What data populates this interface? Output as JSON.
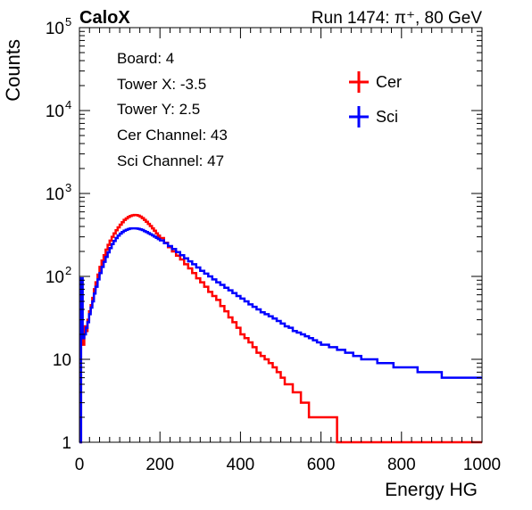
{
  "header": {
    "experiment": "CaloX",
    "run": "Run 1474:   π⁺, 80 GeV"
  },
  "info_box": {
    "lines": [
      "Board: 4",
      "Tower X: -3.5",
      "Tower Y: 2.5",
      "Cer Channel: 43",
      "Sci Channel: 47"
    ]
  },
  "colors": {
    "cer": "#ff0000",
    "sci": "#0000ff"
  },
  "chart_data": {
    "type": "line",
    "xlabel": "Energy HG",
    "ylabel": "Counts",
    "xlim": [
      0,
      1000
    ],
    "ylim": [
      1,
      100000
    ],
    "yscale": "log",
    "x_ticks": [
      0,
      200,
      400,
      600,
      800,
      1000
    ],
    "y_ticks": [
      {
        "value": 1,
        "label": "1"
      },
      {
        "value": 10,
        "label": "10"
      },
      {
        "value": 100,
        "label": "10",
        "exp": "2"
      },
      {
        "value": 1000,
        "label": "10",
        "exp": "3"
      },
      {
        "value": 10000,
        "label": "10",
        "exp": "4"
      },
      {
        "value": 100000,
        "label": "10",
        "exp": "5"
      }
    ],
    "legend_position": "top-right",
    "series": [
      {
        "name": "Cer",
        "color": "#ff0000",
        "points": [
          [
            0,
            1
          ],
          [
            4,
            20
          ],
          [
            8,
            15
          ],
          [
            12,
            25
          ],
          [
            16,
            22
          ],
          [
            20,
            30
          ],
          [
            24,
            38
          ],
          [
            28,
            45
          ],
          [
            32,
            55
          ],
          [
            36,
            70
          ],
          [
            40,
            85
          ],
          [
            45,
            105
          ],
          [
            50,
            130
          ],
          [
            55,
            155
          ],
          [
            60,
            180
          ],
          [
            65,
            210
          ],
          [
            70,
            240
          ],
          [
            75,
            270
          ],
          [
            80,
            300
          ],
          [
            85,
            330
          ],
          [
            90,
            360
          ],
          [
            95,
            390
          ],
          [
            100,
            420
          ],
          [
            105,
            450
          ],
          [
            110,
            480
          ],
          [
            115,
            500
          ],
          [
            120,
            520
          ],
          [
            125,
            535
          ],
          [
            130,
            545
          ],
          [
            135,
            550
          ],
          [
            140,
            548
          ],
          [
            145,
            540
          ],
          [
            150,
            525
          ],
          [
            155,
            505
          ],
          [
            160,
            480
          ],
          [
            165,
            455
          ],
          [
            170,
            430
          ],
          [
            175,
            405
          ],
          [
            180,
            380
          ],
          [
            185,
            355
          ],
          [
            190,
            330
          ],
          [
            195,
            310
          ],
          [
            200,
            290
          ],
          [
            210,
            255
          ],
          [
            220,
            225
          ],
          [
            230,
            200
          ],
          [
            240,
            178
          ],
          [
            250,
            160
          ],
          [
            260,
            140
          ],
          [
            270,
            125
          ],
          [
            280,
            110
          ],
          [
            290,
            95
          ],
          [
            300,
            85
          ],
          [
            310,
            75
          ],
          [
            320,
            65
          ],
          [
            330,
            58
          ],
          [
            340,
            52
          ],
          [
            350,
            44
          ],
          [
            360,
            38
          ],
          [
            370,
            32
          ],
          [
            380,
            28
          ],
          [
            390,
            24
          ],
          [
            400,
            20
          ],
          [
            410,
            18
          ],
          [
            420,
            16
          ],
          [
            430,
            14
          ],
          [
            440,
            12
          ],
          [
            450,
            11
          ],
          [
            460,
            10
          ],
          [
            470,
            9
          ],
          [
            480,
            8
          ],
          [
            490,
            7
          ],
          [
            500,
            6
          ],
          [
            510,
            5
          ],
          [
            520,
            5
          ],
          [
            530,
            4
          ],
          [
            540,
            4
          ],
          [
            550,
            3
          ],
          [
            560,
            3
          ],
          [
            570,
            2
          ],
          [
            580,
            2
          ],
          [
            600,
            2
          ],
          [
            620,
            2
          ],
          [
            640,
            1
          ],
          [
            660,
            1
          ],
          [
            680,
            1
          ],
          [
            700,
            1
          ],
          [
            720,
            1
          ],
          [
            740,
            1
          ],
          [
            760,
            1
          ],
          [
            780,
            1
          ],
          [
            800,
            1
          ],
          [
            820,
            1
          ],
          [
            840,
            1
          ],
          [
            860,
            1
          ],
          [
            880,
            1
          ],
          [
            900,
            1
          ],
          [
            1000,
            1
          ]
        ]
      },
      {
        "name": "Sci",
        "color": "#0000ff",
        "points": [
          [
            0,
            1
          ],
          [
            4,
            95
          ],
          [
            8,
            18
          ],
          [
            12,
            20
          ],
          [
            16,
            24
          ],
          [
            20,
            28
          ],
          [
            24,
            35
          ],
          [
            28,
            42
          ],
          [
            32,
            50
          ],
          [
            36,
            62
          ],
          [
            40,
            75
          ],
          [
            45,
            92
          ],
          [
            50,
            110
          ],
          [
            55,
            130
          ],
          [
            60,
            150
          ],
          [
            65,
            172
          ],
          [
            70,
            195
          ],
          [
            75,
            220
          ],
          [
            80,
            245
          ],
          [
            85,
            268
          ],
          [
            90,
            290
          ],
          [
            95,
            310
          ],
          [
            100,
            328
          ],
          [
            105,
            343
          ],
          [
            110,
            355
          ],
          [
            115,
            365
          ],
          [
            120,
            372
          ],
          [
            125,
            378
          ],
          [
            130,
            380
          ],
          [
            135,
            380
          ],
          [
            140,
            378
          ],
          [
            145,
            375
          ],
          [
            150,
            370
          ],
          [
            155,
            362
          ],
          [
            160,
            352
          ],
          [
            165,
            342
          ],
          [
            170,
            332
          ],
          [
            175,
            322
          ],
          [
            180,
            312
          ],
          [
            185,
            302
          ],
          [
            190,
            292
          ],
          [
            195,
            282
          ],
          [
            200,
            272
          ],
          [
            210,
            252
          ],
          [
            220,
            232
          ],
          [
            230,
            214
          ],
          [
            240,
            196
          ],
          [
            250,
            180
          ],
          [
            260,
            165
          ],
          [
            270,
            152
          ],
          [
            280,
            140
          ],
          [
            290,
            128
          ],
          [
            300,
            117
          ],
          [
            310,
            108
          ],
          [
            320,
            100
          ],
          [
            330,
            92
          ],
          [
            340,
            85
          ],
          [
            350,
            79
          ],
          [
            360,
            73
          ],
          [
            370,
            68
          ],
          [
            380,
            63
          ],
          [
            390,
            58
          ],
          [
            400,
            54
          ],
          [
            410,
            50
          ],
          [
            420,
            46
          ],
          [
            430,
            43
          ],
          [
            440,
            40
          ],
          [
            450,
            37
          ],
          [
            460,
            35
          ],
          [
            470,
            33
          ],
          [
            480,
            31
          ],
          [
            490,
            29
          ],
          [
            500,
            27
          ],
          [
            510,
            25
          ],
          [
            520,
            24
          ],
          [
            530,
            22
          ],
          [
            540,
            21
          ],
          [
            550,
            20
          ],
          [
            560,
            19
          ],
          [
            570,
            18
          ],
          [
            580,
            17
          ],
          [
            590,
            16
          ],
          [
            600,
            15
          ],
          [
            620,
            14
          ],
          [
            640,
            13
          ],
          [
            660,
            12
          ],
          [
            680,
            11
          ],
          [
            700,
            10
          ],
          [
            720,
            10
          ],
          [
            740,
            9
          ],
          [
            760,
            9
          ],
          [
            780,
            8
          ],
          [
            800,
            8
          ],
          [
            820,
            8
          ],
          [
            840,
            7
          ],
          [
            860,
            7
          ],
          [
            880,
            7
          ],
          [
            900,
            6
          ],
          [
            920,
            6
          ],
          [
            940,
            6
          ],
          [
            960,
            6
          ],
          [
            980,
            6
          ],
          [
            1000,
            6
          ]
        ]
      }
    ]
  }
}
